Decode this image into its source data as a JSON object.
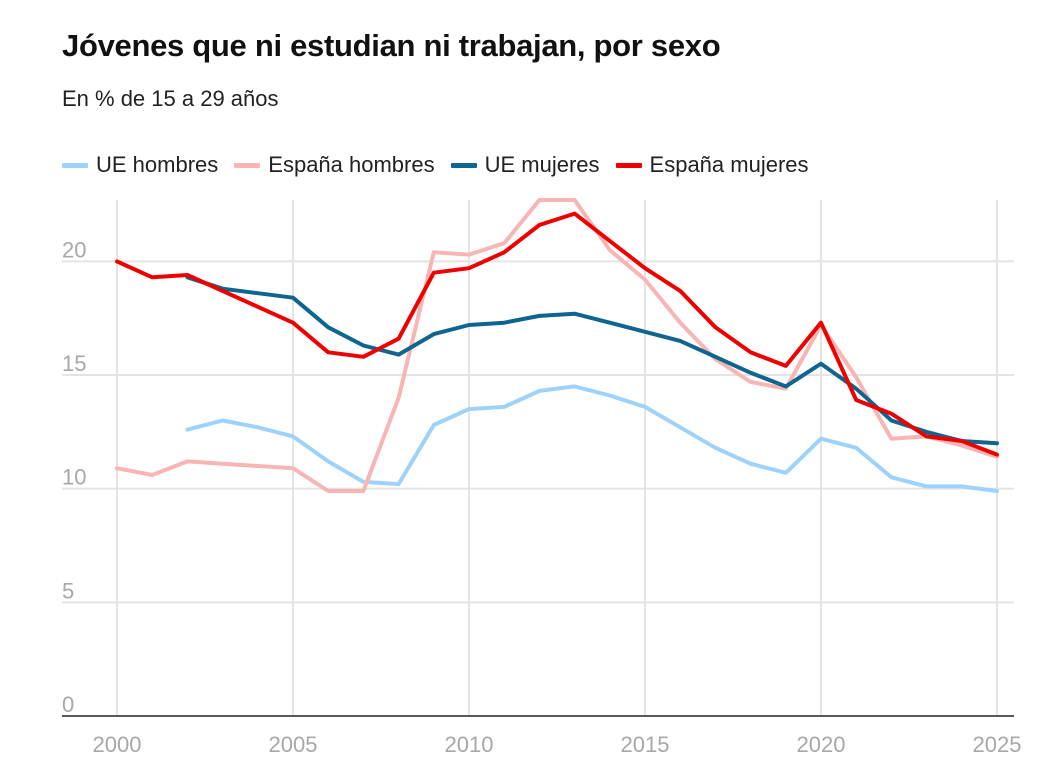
{
  "chart_data": {
    "type": "line",
    "title": "Jóvenes que ni estudian ni trabajan, por sexo",
    "subtitle": "En % de 15 a 29 años",
    "xlabel": "",
    "ylabel": "",
    "xlim": [
      2000,
      2025
    ],
    "ylim": [
      0,
      22.7
    ],
    "x_ticks": [
      "2000",
      "2005",
      "2010",
      "2015",
      "2020",
      "2025"
    ],
    "y_ticks": [
      "0",
      "5",
      "10",
      "15",
      "20"
    ],
    "grid": true,
    "legend_position": "top-left",
    "series": [
      {
        "name": "UE hombres",
        "color": "#9fd2fb",
        "x": [
          2002,
          2003,
          2004,
          2005,
          2006,
          2007,
          2008,
          2009,
          2010,
          2011,
          2012,
          2013,
          2014,
          2015,
          2016,
          2017,
          2018,
          2019,
          2020,
          2021,
          2022,
          2023,
          2024,
          2025
        ],
        "values": [
          12.6,
          13.0,
          12.7,
          12.3,
          11.2,
          10.3,
          10.2,
          12.8,
          13.5,
          13.6,
          14.3,
          14.5,
          14.1,
          13.6,
          12.7,
          11.8,
          11.1,
          10.7,
          12.2,
          11.8,
          10.5,
          10.1,
          10.1,
          9.9
        ]
      },
      {
        "name": "España hombres",
        "color": "#f9b4b4",
        "x": [
          2000,
          2001,
          2002,
          2003,
          2004,
          2005,
          2006,
          2007,
          2008,
          2009,
          2010,
          2011,
          2012,
          2013,
          2014,
          2015,
          2016,
          2017,
          2018,
          2019,
          2020,
          2021,
          2022,
          2023,
          2024,
          2025
        ],
        "values": [
          10.9,
          10.6,
          11.2,
          11.1,
          11.0,
          10.9,
          9.9,
          9.9,
          14.0,
          20.4,
          20.3,
          20.8,
          22.7,
          22.7,
          20.5,
          19.2,
          17.3,
          15.7,
          14.7,
          14.4,
          17.2,
          14.9,
          12.2,
          12.3,
          11.9,
          11.4
        ]
      },
      {
        "name": "UE mujeres",
        "color": "#0d6590",
        "x": [
          2002,
          2003,
          2004,
          2005,
          2006,
          2007,
          2008,
          2009,
          2010,
          2011,
          2012,
          2013,
          2014,
          2015,
          2016,
          2017,
          2018,
          2019,
          2020,
          2021,
          2022,
          2023,
          2024,
          2025
        ],
        "values": [
          19.3,
          18.8,
          18.6,
          18.4,
          17.1,
          16.3,
          15.9,
          16.8,
          17.2,
          17.3,
          17.6,
          17.7,
          17.3,
          16.9,
          16.5,
          15.8,
          15.1,
          14.5,
          15.5,
          14.4,
          13.0,
          12.5,
          12.1,
          12.0
        ]
      },
      {
        "name": "España mujeres",
        "color": "#ef0000",
        "x": [
          2000,
          2001,
          2002,
          2003,
          2004,
          2005,
          2006,
          2007,
          2008,
          2009,
          2010,
          2011,
          2012,
          2013,
          2014,
          2015,
          2016,
          2017,
          2018,
          2019,
          2020,
          2021,
          2022,
          2023,
          2024,
          2025
        ],
        "values": [
          20.0,
          19.3,
          19.4,
          18.7,
          18.0,
          17.3,
          16.0,
          15.8,
          16.6,
          19.5,
          19.7,
          20.4,
          21.6,
          22.1,
          20.9,
          19.7,
          18.7,
          17.1,
          16.0,
          15.4,
          17.3,
          13.9,
          13.3,
          12.3,
          12.1,
          11.5
        ]
      }
    ]
  }
}
